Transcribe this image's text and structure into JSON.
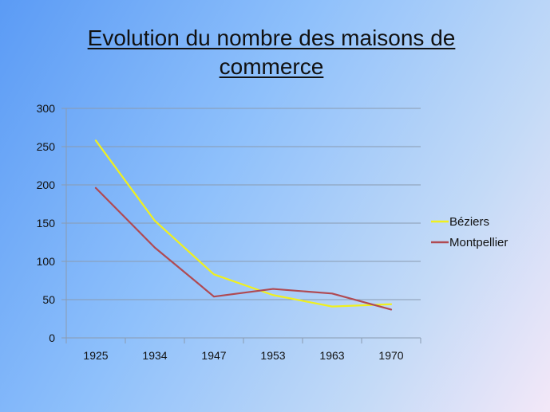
{
  "slide": {
    "title_line1": "Evolution du nombre des maisons de",
    "title_line2": "commerce"
  },
  "chart_data": {
    "type": "line",
    "title": "",
    "xlabel": "",
    "ylabel": "",
    "categories": [
      "1925",
      "1934",
      "1947",
      "1953",
      "1963",
      "1970"
    ],
    "ylim": [
      0,
      300
    ],
    "yticks": [
      0,
      50,
      100,
      150,
      200,
      250,
      300
    ],
    "grid": true,
    "legend_position": "right",
    "series": [
      {
        "name": "Béziers",
        "color": "#f0f01e",
        "values": [
          258,
          153,
          83,
          56,
          41,
          44
        ]
      },
      {
        "name": "Montpellier",
        "color": "#b04a52",
        "values": [
          196,
          118,
          54,
          64,
          58,
          37
        ]
      }
    ]
  }
}
